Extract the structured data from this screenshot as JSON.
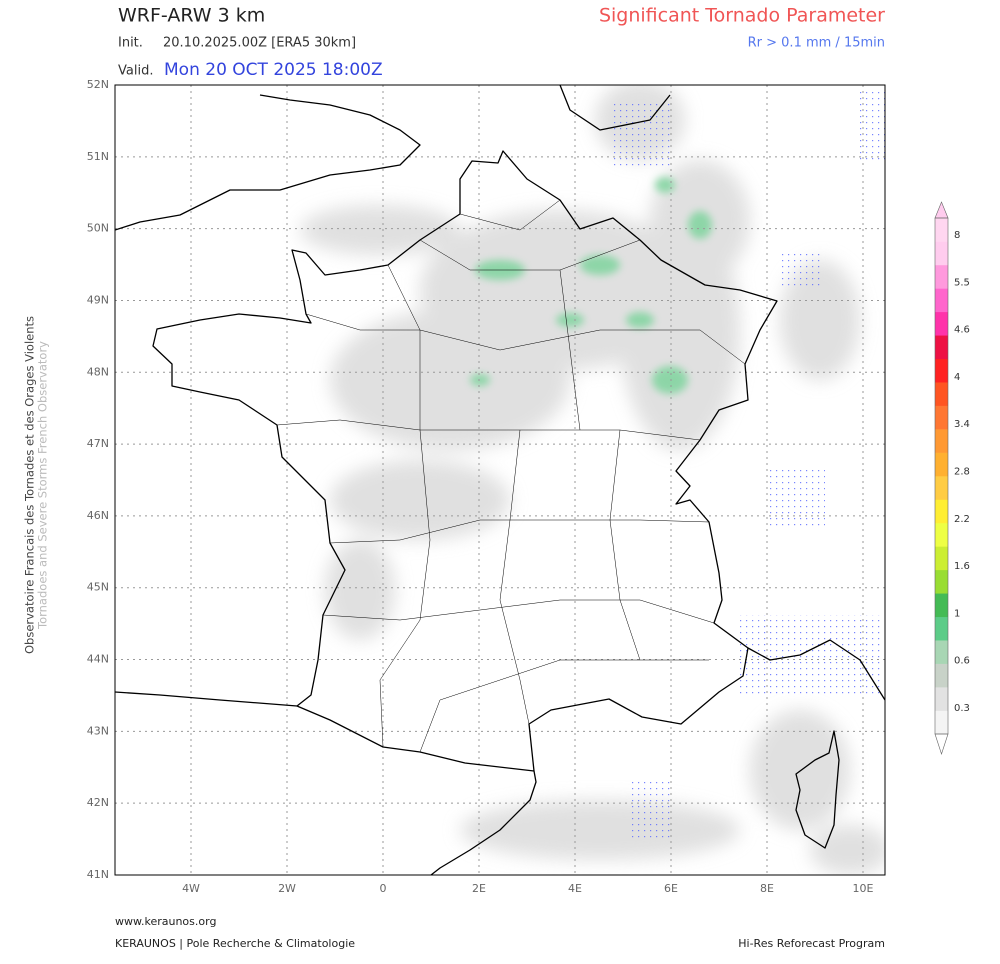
{
  "header": {
    "model": "WRF-ARW 3 km",
    "init_label": "Init.",
    "init": "20.10.2025.00Z [ERA5 30km]",
    "valid_label": "Valid.",
    "valid": "Mon 20 OCT 2025 18:00Z",
    "parameter": "Significant Tornado Parameter",
    "threshold": "Rr > 0.1 mm / 15min"
  },
  "map": {
    "lat_labels": [
      "52N",
      "51N",
      "50N",
      "49N",
      "48N",
      "47N",
      "46N",
      "45N",
      "44N",
      "43N",
      "42N",
      "41N"
    ],
    "lon_labels": [
      "4W",
      "2W",
      "0",
      "2E",
      "4E",
      "6E",
      "8E",
      "10E"
    ]
  },
  "colorbar": {
    "labels": [
      8,
      5.5,
      4.6,
      4,
      3.4,
      2.8,
      2.2,
      1.6,
      1,
      0.6,
      0.3
    ]
  },
  "side": {
    "line1": "Observatoire Francais des Tornades et des Orages Violents",
    "line2": "Tornadoes and Severe Storms French Observatory"
  },
  "footer": {
    "website": "www.keraunos.org",
    "org": "KERAUNOS | Pole Recherche & Climatologie",
    "program": "Hi-Res Reforecast Program"
  }
}
